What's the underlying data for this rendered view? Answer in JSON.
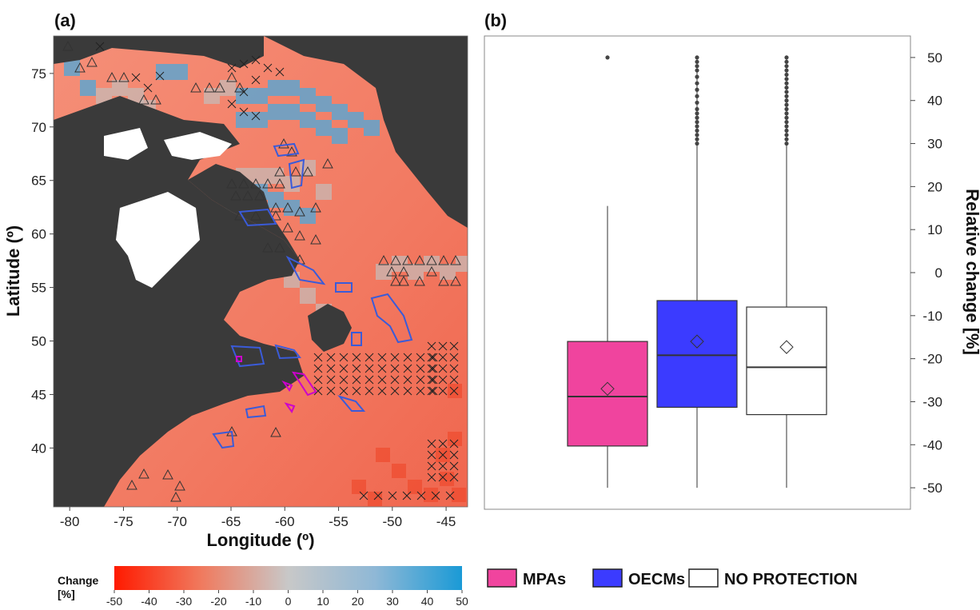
{
  "panel_a": {
    "label": "(a)",
    "xlabel": "Longitude (º)",
    "ylabel": "Latitude (º)",
    "x_ticks": [
      "-80",
      "-75",
      "-70",
      "-65",
      "-60",
      "-55",
      "-50",
      "-45"
    ],
    "y_ticks": [
      "40",
      "45",
      "50",
      "55",
      "60",
      "65",
      "70",
      "75"
    ],
    "colorbar": {
      "title_line1": "Change",
      "title_line2": "[%]",
      "ticks": [
        "-50",
        "-40",
        "-30",
        "-20",
        "-10",
        "0",
        "10",
        "20",
        "30",
        "40",
        "50"
      ],
      "low_color": "#ff1a00",
      "mid_color": "#c8c8c8",
      "high_color": "#1a9ad6"
    },
    "land_color": "#3a3a3a"
  },
  "panel_b": {
    "label": "(b)",
    "ylabel": "Relative change [%]"
  },
  "chart_data": [
    {
      "type": "heatmap",
      "title": "",
      "xlabel": "Longitude (º)",
      "ylabel": "Latitude (º)",
      "xlim": [
        -81.5,
        -43
      ],
      "ylim": [
        34.5,
        78.5
      ],
      "colorbar_label": "Change [%]",
      "colorbar_range": [
        -50,
        50
      ]
    },
    {
      "type": "box",
      "title": "",
      "ylabel": "Relative change [%]",
      "ylim": [
        -55,
        55
      ],
      "y_ticks": [
        -50,
        -40,
        -30,
        -20,
        -10,
        0,
        10,
        20,
        30,
        40,
        50
      ],
      "series": [
        {
          "name": "MPAs",
          "color": "#f0449e",
          "min": -50,
          "q1": -40.3,
          "median": -28.8,
          "q3": -16,
          "max": 15.5,
          "mean": -27,
          "outliers": [
            50
          ]
        },
        {
          "name": "OECMs",
          "color": "#3b3bff",
          "min": -50,
          "q1": -31.3,
          "median": -19.2,
          "q3": -6.5,
          "max": 50,
          "mean": -16,
          "outliers": [
            30,
            31,
            32,
            33,
            34,
            35,
            36,
            37,
            38,
            39.5,
            41,
            42.5,
            44,
            45.5,
            47,
            48,
            49,
            50
          ]
        },
        {
          "name": "NO PROTECTION",
          "color": "#ffffff",
          "min": -50,
          "q1": -33,
          "median": -22,
          "q3": -8,
          "max": 50,
          "mean": -17.3,
          "outliers": [
            30,
            31,
            32,
            33,
            34,
            35,
            36,
            37,
            38,
            39,
            40,
            41,
            42,
            43,
            44,
            45,
            46,
            47,
            48,
            49,
            50
          ]
        }
      ]
    }
  ],
  "legend": {
    "items": [
      {
        "label": "MPAs",
        "color": "#f0449e"
      },
      {
        "label": "OECMs",
        "color": "#3b3bff"
      },
      {
        "label": "NO PROTECTION",
        "color": "#ffffff"
      }
    ]
  }
}
